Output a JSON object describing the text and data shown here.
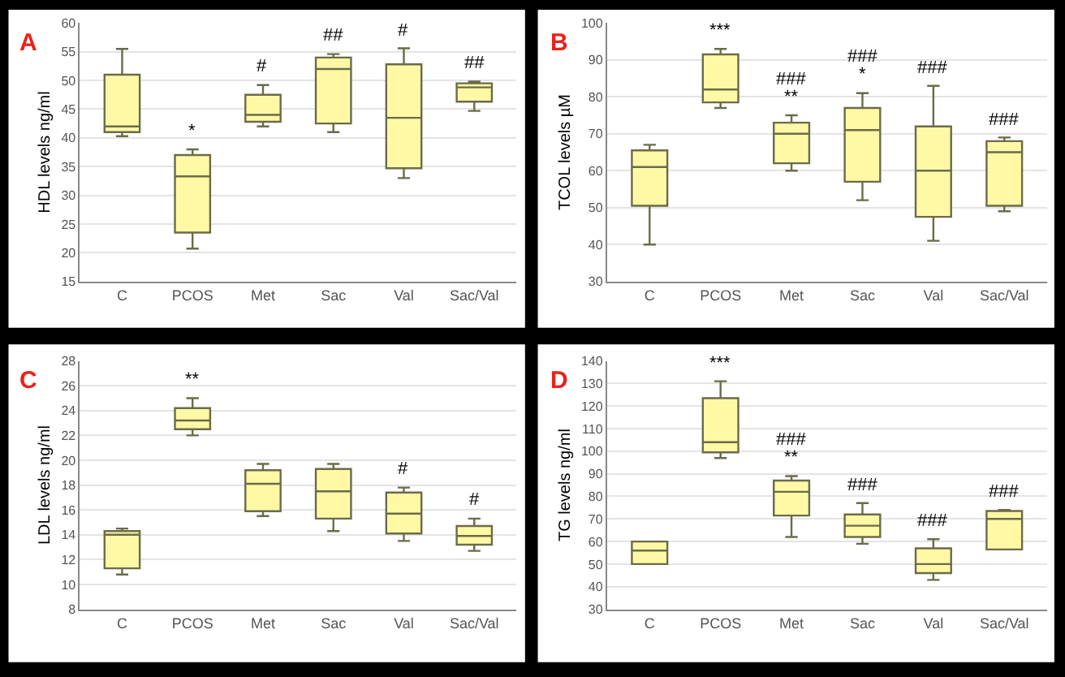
{
  "chart_data": [
    {
      "type": "box",
      "title": "A",
      "ylabel": "HDL levels ng/ml",
      "categories": [
        "C",
        "PCOS",
        "Met",
        "Sac",
        "Val",
        "Sac/Val"
      ],
      "color": "#fff9a6",
      "ylim": [
        15,
        60
      ],
      "yticks": [
        15,
        20,
        25,
        30,
        35,
        40,
        45,
        50,
        55,
        60
      ],
      "grid": "y",
      "boxes": [
        {
          "low": 40.3,
          "q1": 41,
          "median": 42,
          "q3": 51,
          "high": 55.5
        },
        {
          "low": 20.7,
          "q1": 23.5,
          "median": 33.3,
          "q3": 37,
          "high": 38
        },
        {
          "low": 42,
          "q1": 42.8,
          "median": 44,
          "q3": 47.5,
          "high": 49.2
        },
        {
          "low": 41,
          "q1": 42.5,
          "median": 52,
          "q3": 54,
          "high": 54.6
        },
        {
          "low": 33,
          "q1": 34.7,
          "median": 43.5,
          "q3": 52.8,
          "high": 55.6
        },
        {
          "low": 44.7,
          "q1": 46.3,
          "median": 48.8,
          "q3": 49.5,
          "high": 49.8
        }
      ],
      "annotations": [
        "*",
        "#",
        "##",
        "#",
        "##"
      ]
    },
    {
      "type": "box",
      "title": "B",
      "ylabel": "TCOL levels µM",
      "categories": [
        "C",
        "PCOS",
        "Met",
        "Sac",
        "Val",
        "Sac/Val"
      ],
      "color": "#fff9a6",
      "ylim": [
        30,
        100
      ],
      "yticks": [
        30,
        40,
        50,
        60,
        70,
        80,
        90,
        100
      ],
      "grid": "y",
      "boxes": [
        {
          "low": 40,
          "q1": 50.5,
          "median": 61,
          "q3": 65.5,
          "high": 67
        },
        {
          "low": 77,
          "q1": 78.5,
          "median": 82,
          "q3": 91.5,
          "high": 93
        },
        {
          "low": 60,
          "q1": 62,
          "median": 70,
          "q3": 73,
          "high": 75
        },
        {
          "low": 52,
          "q1": 57,
          "median": 71,
          "q3": 77,
          "high": 81
        },
        {
          "low": 41,
          "q1": 47.5,
          "median": 60,
          "q3": 72,
          "high": 83
        },
        {
          "low": 49,
          "q1": 50.5,
          "median": 65,
          "q3": 68,
          "high": 69
        }
      ],
      "annotations": [
        "***",
        "**",
        "###",
        "*",
        "###",
        "###",
        "###"
      ]
    },
    {
      "type": "box",
      "title": "C",
      "ylabel": "LDL levels ng/ml",
      "categories": [
        "C",
        "PCOS",
        "Met",
        "Sac",
        "Val",
        "Sac/Val"
      ],
      "color": "#fff9a6",
      "ylim": [
        8,
        28
      ],
      "yticks": [
        8,
        10,
        12,
        14,
        16,
        18,
        20,
        22,
        24,
        26,
        28
      ],
      "grid": "y",
      "boxes": [
        {
          "low": 10.8,
          "q1": 11.3,
          "median": 14,
          "q3": 14.3,
          "high": 14.5
        },
        {
          "low": 22,
          "q1": 22.5,
          "median": 23.2,
          "q3": 24.2,
          "high": 25
        },
        {
          "low": 15.5,
          "q1": 15.9,
          "median": 18.1,
          "q3": 19.2,
          "high": 19.7
        },
        {
          "low": 14.3,
          "q1": 15.3,
          "median": 17.5,
          "q3": 19.3,
          "high": 19.7
        },
        {
          "low": 13.5,
          "q1": 14.1,
          "median": 15.7,
          "q3": 17.4,
          "high": 17.8
        },
        {
          "low": 12.7,
          "q1": 13.2,
          "median": 13.9,
          "q3": 14.7,
          "high": 15.3
        }
      ],
      "annotations": [
        "**",
        "#",
        "#"
      ]
    },
    {
      "type": "box",
      "title": "D",
      "ylabel": "TG levels ng/ml",
      "categories": [
        "C",
        "PCOS",
        "Met",
        "Sac",
        "Val",
        "Sac/Val"
      ],
      "color": "#fff9a6",
      "ylim": [
        30,
        140
      ],
      "yticks": [
        30,
        40,
        50,
        60,
        70,
        80,
        90,
        100,
        110,
        120,
        130,
        140
      ],
      "grid": "y",
      "boxes": [
        {
          "low": 50,
          "q1": 50,
          "median": 56,
          "q3": 60,
          "high": 60
        },
        {
          "low": 97,
          "q1": 99.5,
          "median": 104,
          "q3": 123.5,
          "high": 131
        },
        {
          "low": 62,
          "q1": 71.5,
          "median": 82,
          "q3": 87,
          "high": 89
        },
        {
          "low": 59,
          "q1": 62,
          "median": 67,
          "q3": 72,
          "high": 77
        },
        {
          "low": 43,
          "q1": 46,
          "median": 50,
          "q3": 57,
          "high": 61
        },
        {
          "low": 56.5,
          "q1": 56.5,
          "median": 70,
          "q3": 73.5,
          "high": 74
        }
      ],
      "annotations": [
        "***",
        "**",
        "###",
        "###",
        "###",
        "###"
      ]
    }
  ]
}
